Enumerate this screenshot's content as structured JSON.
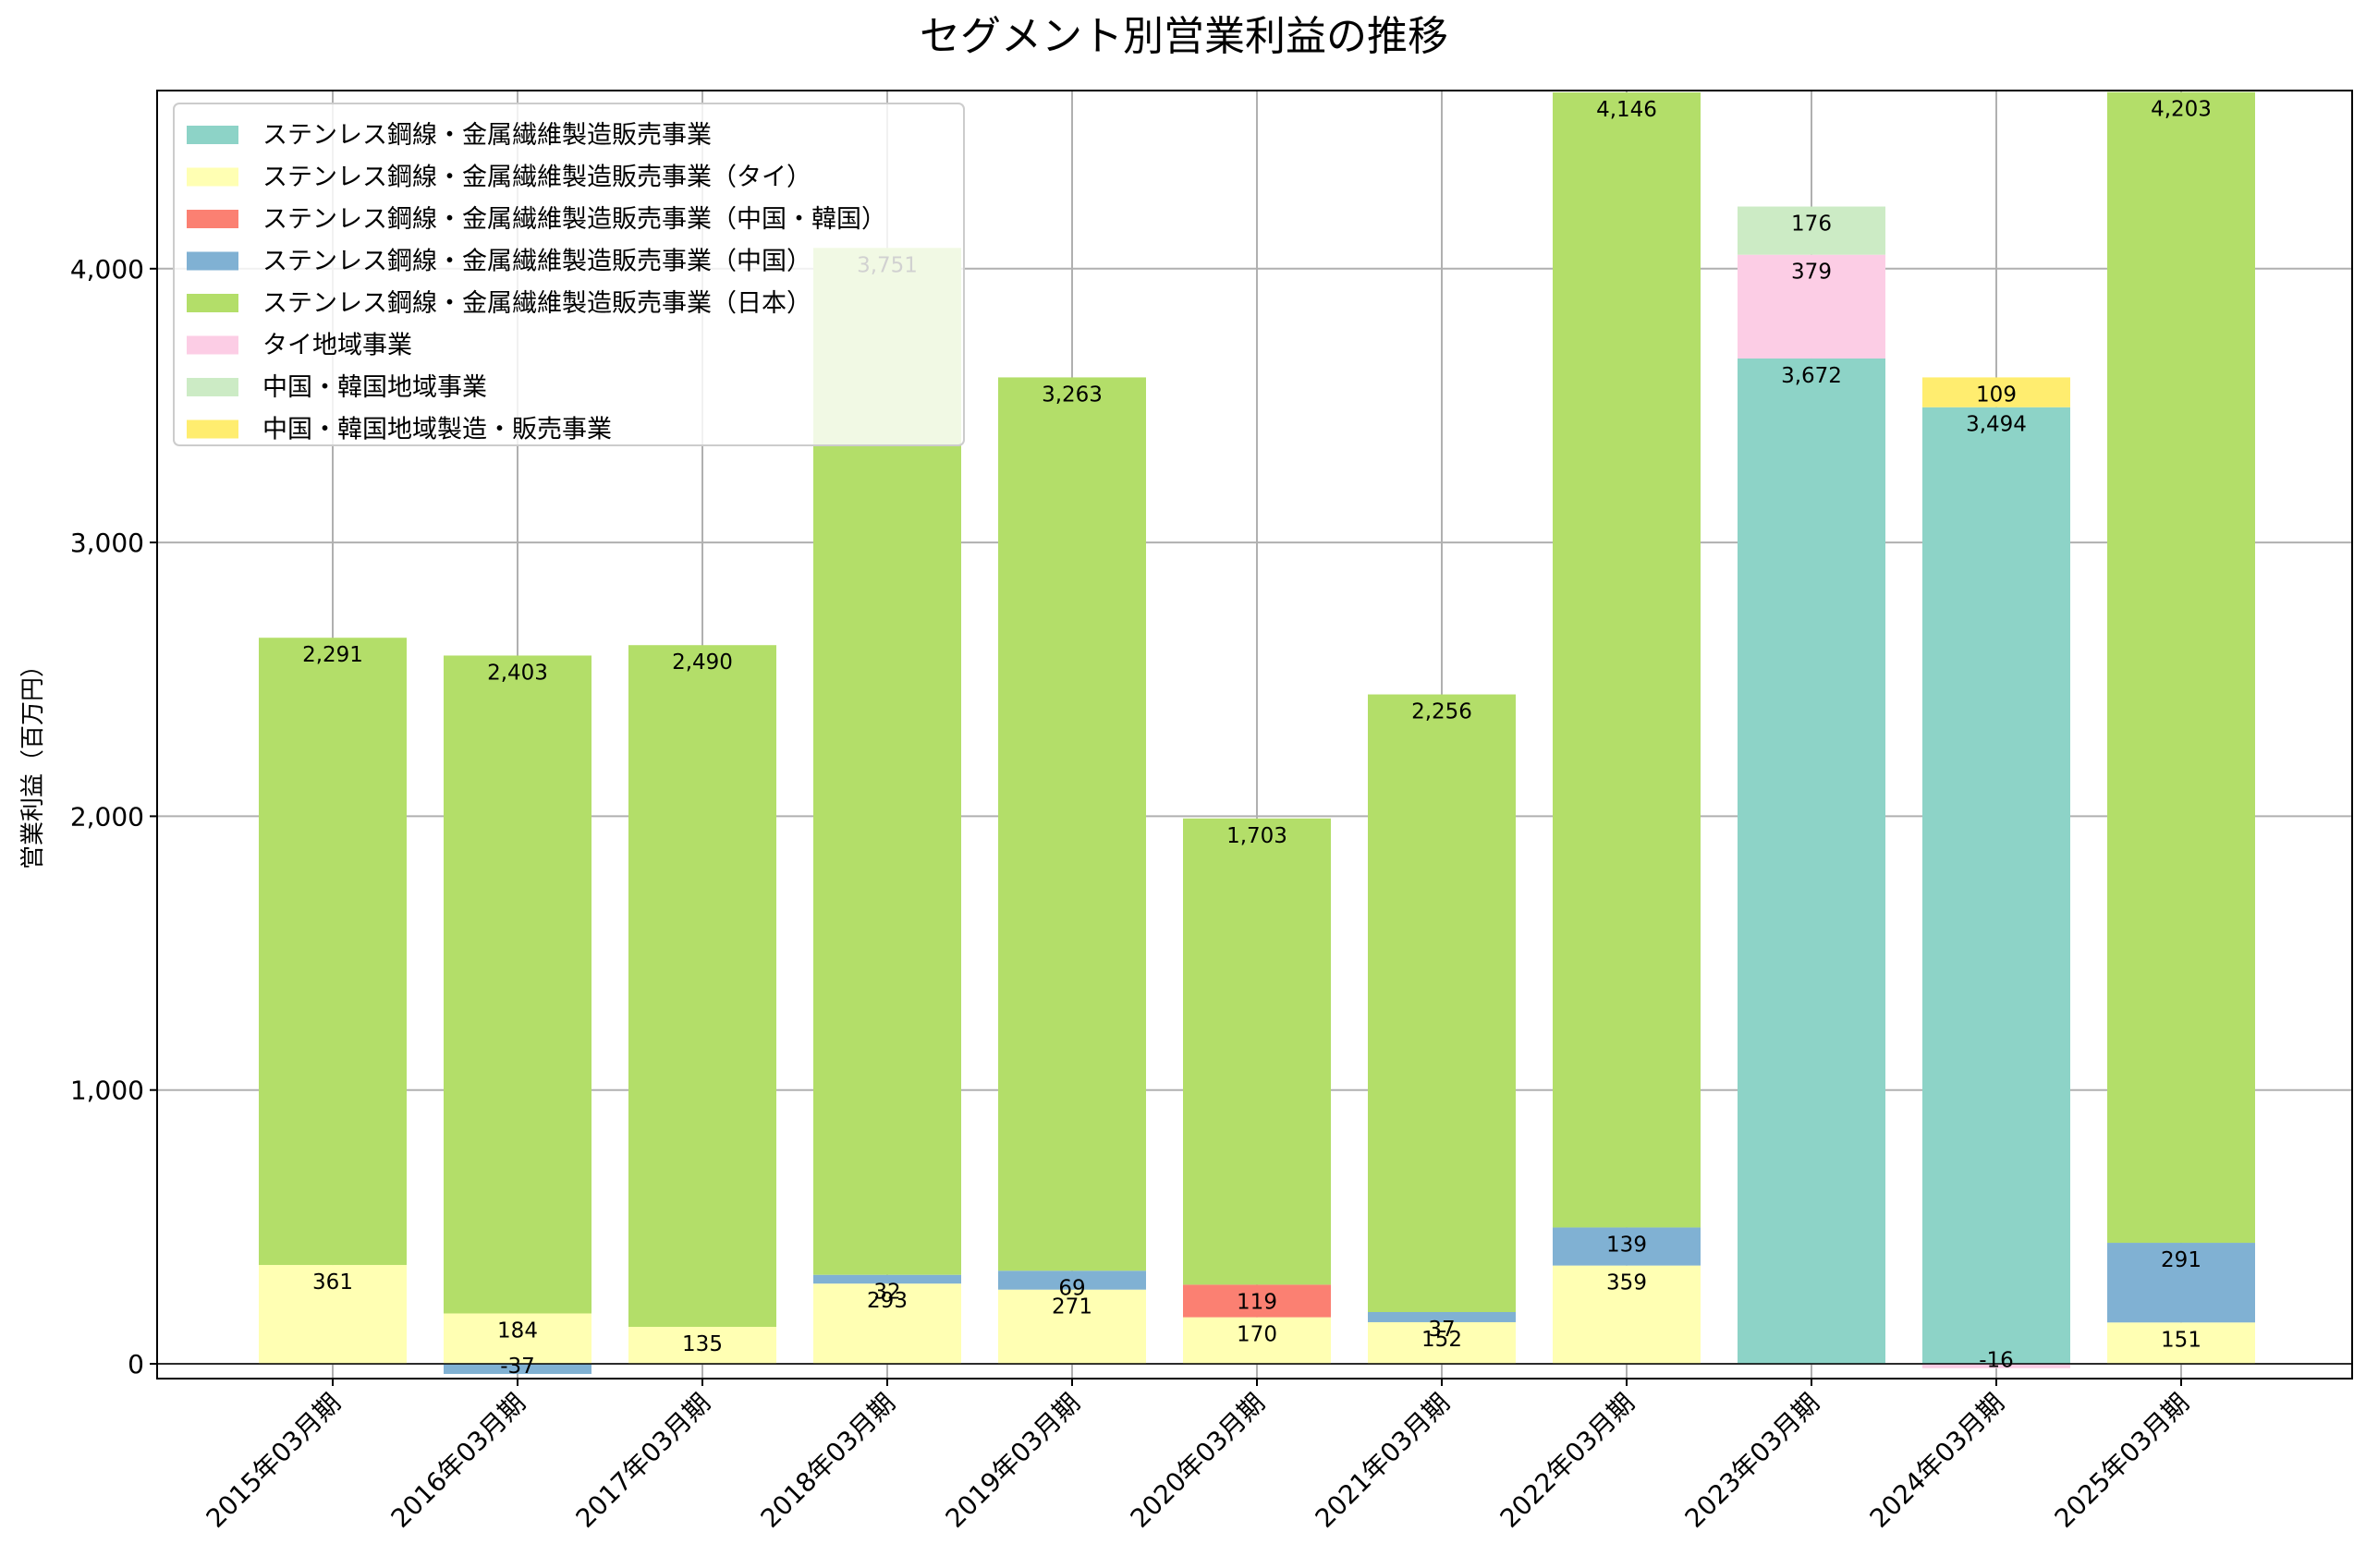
{
  "chart_data": {
    "type": "bar",
    "stacked": true,
    "title": "セグメント別営業利益の推移",
    "xlabel": "",
    "ylabel": "営業利益（百万円）",
    "ylim": [
      -50,
      4650
    ],
    "yticks": [
      0,
      1000,
      2000,
      3000,
      4000
    ],
    "ytick_labels": [
      "0",
      "1,000",
      "2,000",
      "3,000",
      "4,000"
    ],
    "grid": true,
    "legend_position": "top-left",
    "categories": [
      "2015年03月期",
      "2016年03月期",
      "2017年03月期",
      "2018年03月期",
      "2019年03月期",
      "2020年03月期",
      "2021年03月期",
      "2022年03月期",
      "2023年03月期",
      "2024年03月期",
      "2025年03月期"
    ],
    "series": [
      {
        "name": "ステンレス鋼線・金属繊維製造販売事業",
        "color": "#8dd3c7",
        "values": [
          null,
          null,
          null,
          null,
          null,
          null,
          null,
          null,
          3672,
          3494,
          null
        ],
        "labels": [
          null,
          null,
          null,
          null,
          null,
          null,
          null,
          null,
          "3,672",
          "3,494",
          null
        ]
      },
      {
        "name": "ステンレス鋼線・金属繊維製造販売事業（タイ）",
        "color": "#ffffb3",
        "values": [
          361,
          184,
          135,
          293,
          271,
          170,
          152,
          359,
          null,
          null,
          151
        ],
        "labels": [
          "361",
          "184",
          "135",
          "293",
          "271",
          "170",
          "152",
          "359",
          null,
          null,
          "151"
        ]
      },
      {
        "name": "ステンレス鋼線・金属繊維製造販売事業（中国・韓国）",
        "color": "#fb8072",
        "values": [
          null,
          null,
          null,
          null,
          null,
          119,
          null,
          null,
          null,
          null,
          null
        ],
        "labels": [
          null,
          null,
          null,
          null,
          null,
          "119",
          null,
          null,
          null,
          null,
          null
        ]
      },
      {
        "name": "ステンレス鋼線・金属繊維製造販売事業（中国）",
        "color": "#80b1d3",
        "values": [
          null,
          -37,
          null,
          32,
          69,
          null,
          37,
          139,
          null,
          null,
          291
        ],
        "labels": [
          null,
          "-37",
          null,
          "32",
          "69",
          null,
          "37",
          "139",
          null,
          null,
          "291"
        ]
      },
      {
        "name": "ステンレス鋼線・金属繊維製造販売事業（日本）",
        "color": "#b3de69",
        "values": [
          2291,
          2403,
          2490,
          3751,
          3263,
          1703,
          2256,
          4146,
          null,
          null,
          4203
        ],
        "labels": [
          "2,291",
          "2,403",
          "2,490",
          "3,751",
          "3,263",
          "1,703",
          "2,256",
          "4,146",
          null,
          null,
          "4,203"
        ]
      },
      {
        "name": "タイ地域事業",
        "color": "#fccde5",
        "values": [
          null,
          null,
          null,
          null,
          null,
          null,
          null,
          null,
          379,
          -16,
          null
        ],
        "labels": [
          null,
          null,
          null,
          null,
          null,
          null,
          null,
          null,
          "379",
          "-16",
          null
        ]
      },
      {
        "name": "中国・韓国地域事業",
        "color": "#ccebc5",
        "values": [
          null,
          null,
          null,
          null,
          null,
          null,
          null,
          null,
          176,
          null,
          null
        ],
        "labels": [
          null,
          null,
          null,
          null,
          null,
          null,
          null,
          null,
          "176",
          null,
          null
        ]
      },
      {
        "name": "中国・韓国地域製造・販売事業",
        "color": "#ffed6f",
        "values": [
          null,
          null,
          null,
          null,
          null,
          null,
          null,
          null,
          null,
          109,
          null
        ],
        "labels": [
          null,
          null,
          null,
          null,
          null,
          null,
          null,
          null,
          null,
          "109",
          null
        ]
      }
    ]
  }
}
